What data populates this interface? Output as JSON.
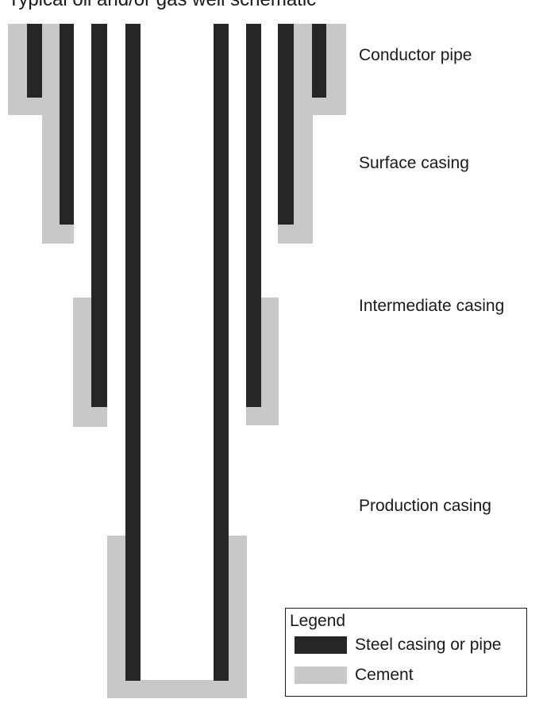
{
  "title": "Typical oil and/or gas well schematic",
  "labels": {
    "conductor": "Conductor pipe",
    "surface": "Surface casing",
    "intermediate": "Intermediate casing",
    "production": "Production casing"
  },
  "legend": {
    "title": "Legend",
    "items": [
      {
        "label": "Steel casing or pipe",
        "color": "#262626"
      },
      {
        "label": "Cement",
        "color": "#c8c8c8"
      }
    ]
  },
  "colors": {
    "steel": "#262626",
    "cement": "#c8c8c8"
  }
}
